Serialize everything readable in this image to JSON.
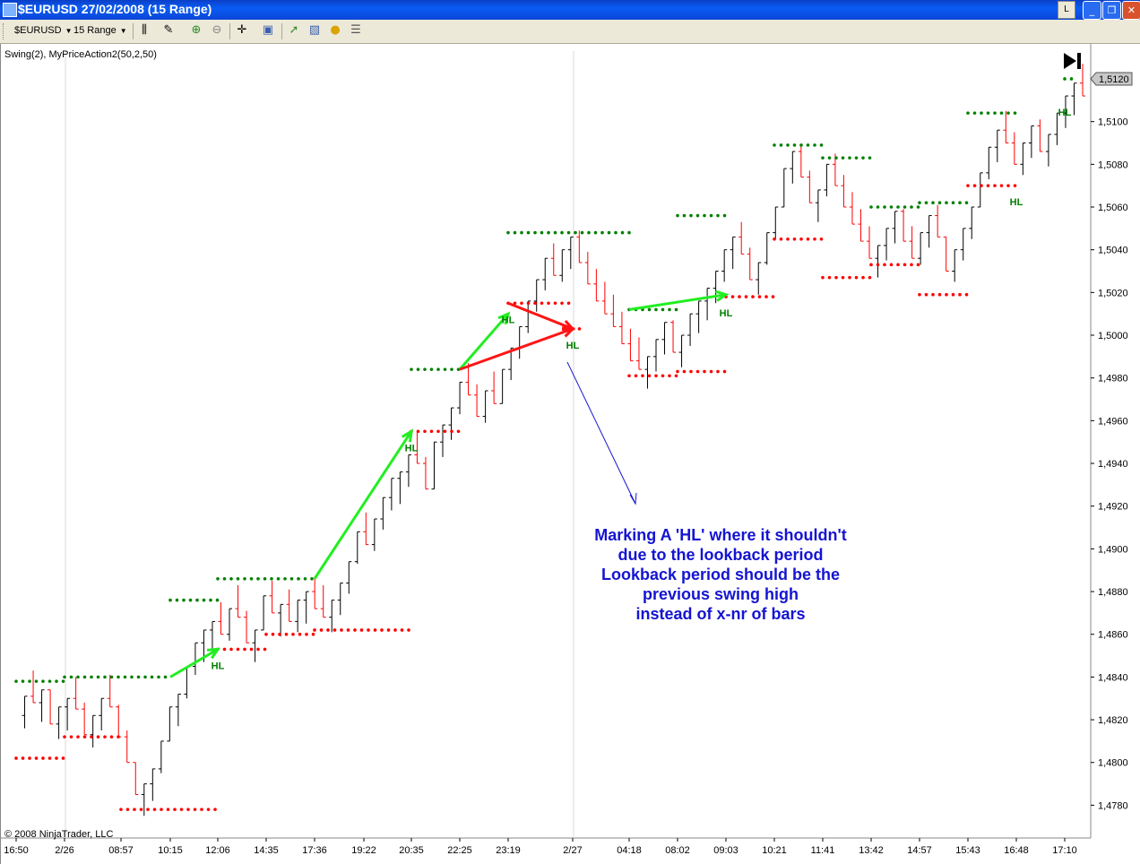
{
  "window": {
    "title": "$EURUSD  27/02/2008 (15 Range)",
    "link_label": "L",
    "minimize_icon": "minimize-icon",
    "restore_icon": "restore-icon",
    "close_icon": "close-icon"
  },
  "toolbar": {
    "instrument": "$EURUSD",
    "period": "15 Range",
    "icons": [
      "bar-type-icon",
      "drawing-tools-icon",
      "zoom-in-icon",
      "zoom-out-icon",
      "crosshair-icon",
      "data-box-icon",
      "indicators-icon",
      "strategies-icon",
      "chart-style-icon",
      "properties-icon"
    ]
  },
  "chart": {
    "indicator_label": "Swing(2), MyPriceAction2(50,2,50)",
    "copyright": "© 2008 NinjaTrader, LLC",
    "last_price": "1,5120",
    "go_to_end_icon": "go-to-end-icon",
    "colors": {
      "up_bar": "#000000",
      "down_bar": "#ff0000",
      "swing_high": "#008000",
      "swing_low": "#ff0000",
      "green_arrow": "#22ee22",
      "red_arrow": "#ff1414",
      "blue_arrow": "#1414d2",
      "note_text": "#1414d2"
    },
    "annotation_lines": [
      "Marking A  'HL'  where it shouldn't",
      "due to the lookback period",
      "Lookback period should be the",
      "previous swing high",
      "instead of x-nr of bars"
    ]
  },
  "chart_data": {
    "type": "ohlc-range",
    "title": "$EURUSD  27/02/2008 (15 Range)",
    "y_ticks": [
      "1,4780",
      "1,4800",
      "1,4820",
      "1,4840",
      "1,4860",
      "1,4880",
      "1,4900",
      "1,4920",
      "1,4940",
      "1,4960",
      "1,4980",
      "1,5000",
      "1,5020",
      "1,5040",
      "1,5060",
      "1,5080",
      "1,5100"
    ],
    "ylim": [
      1.4768,
      1.5133
    ],
    "x_ticks": [
      "16:50",
      "2/26",
      "08:57",
      "10:15",
      "12:06",
      "14:35",
      "17:36",
      "19:22",
      "20:35",
      "22:25",
      "23:19",
      "2/27",
      "04:18",
      "08:02",
      "09:03",
      "10:21",
      "11:41",
      "13:42",
      "14:57",
      "15:43",
      "16:48",
      "17:10"
    ],
    "last_price": 1.512,
    "swing_high_levels": [
      {
        "from": "16:50",
        "to": "2/26",
        "value": 1.4838
      },
      {
        "from": "2/26",
        "to": "10:15",
        "value": 1.484
      },
      {
        "from": "10:15",
        "to": "12:06",
        "value": 1.4876
      },
      {
        "from": "12:06",
        "to": "17:36",
        "value": 1.4886
      },
      {
        "from": "20:35",
        "to": "22:25",
        "value": 1.4984
      },
      {
        "from": "23:19",
        "to": "04:18",
        "value": 1.5048
      },
      {
        "from": "04:18",
        "to": "08:02",
        "value": 1.5012
      },
      {
        "from": "08:02",
        "to": "09:03",
        "value": 1.5056
      },
      {
        "from": "10:21",
        "to": "11:41",
        "value": 1.5089
      },
      {
        "from": "11:41",
        "to": "13:42",
        "value": 1.5083
      },
      {
        "from": "13:42",
        "to": "14:57",
        "value": 1.506
      },
      {
        "from": "14:57",
        "to": "15:43",
        "value": 1.5062
      },
      {
        "from": "15:43",
        "to": "16:48",
        "value": 1.5104
      },
      {
        "from": "17:10",
        "to": "17:10",
        "value": 1.512
      }
    ],
    "swing_low_levels": [
      {
        "from": "16:50",
        "to": "2/26",
        "value": 1.4802
      },
      {
        "from": "2/26",
        "to": "08:57",
        "value": 1.4812
      },
      {
        "from": "08:57",
        "to": "12:06",
        "value": 1.4778
      },
      {
        "from": "12:06",
        "to": "14:35",
        "value": 1.4853
      },
      {
        "from": "14:35",
        "to": "17:36",
        "value": 1.486
      },
      {
        "from": "17:36",
        "to": "20:35",
        "value": 1.4862
      },
      {
        "from": "20:35",
        "to": "22:25",
        "value": 1.4955
      },
      {
        "from": "23:19",
        "to": "2/27",
        "value": 1.5015
      },
      {
        "from": "2/27",
        "to": "2/27",
        "value": 1.5003
      },
      {
        "from": "04:18",
        "to": "08:02",
        "value": 1.4981
      },
      {
        "from": "08:02",
        "to": "09:03",
        "value": 1.4983
      },
      {
        "from": "09:03",
        "to": "10:21",
        "value": 1.5018
      },
      {
        "from": "10:21",
        "to": "11:41",
        "value": 1.5045
      },
      {
        "from": "11:41",
        "to": "13:42",
        "value": 1.5027
      },
      {
        "from": "13:42",
        "to": "14:57",
        "value": 1.5033
      },
      {
        "from": "14:57",
        "to": "15:43",
        "value": 1.5019
      },
      {
        "from": "15:43",
        "to": "16:48",
        "value": 1.507
      }
    ],
    "hl_labels": [
      {
        "text": "HL",
        "x": "12:06",
        "value": 1.4853
      },
      {
        "text": "HL",
        "x": "20:35",
        "value": 1.4955
      },
      {
        "text": "HL",
        "x": "23:19",
        "value": 1.5015
      },
      {
        "text": "HL",
        "x": "2/27",
        "value": 1.5003
      },
      {
        "text": "HL",
        "x": "09:03",
        "value": 1.5018
      },
      {
        "text": "HL",
        "x": "16:48",
        "value": 1.507
      },
      {
        "text": "HL",
        "x": "17:10",
        "value": 1.5112
      }
    ],
    "green_arrows": [
      {
        "from": [
          "10:15",
          1.484
        ],
        "to": [
          "12:06",
          1.4853
        ]
      },
      {
        "from": [
          "17:36",
          1.4886
        ],
        "to": [
          "20:35",
          1.4955
        ]
      },
      {
        "from": [
          "22:25",
          1.4984
        ],
        "to": [
          "23:19",
          1.501
        ]
      },
      {
        "from": [
          "04:18",
          1.5012
        ],
        "to": [
          "09:03",
          1.5019
        ]
      }
    ],
    "red_arrows": [
      {
        "from": [
          "22:25",
          1.4984
        ],
        "to": [
          "2/27",
          1.5003
        ]
      },
      {
        "from": [
          "23:19",
          1.5015
        ],
        "to": [
          "2/27",
          1.5003
        ]
      }
    ],
    "price_path": [
      1.4822,
      1.4831,
      1.4828,
      1.4834,
      1.4818,
      1.4826,
      1.483,
      1.4825,
      1.4813,
      1.4822,
      1.483,
      1.4826,
      1.4812,
      1.48,
      1.4785,
      1.479,
      1.4797,
      1.481,
      1.4826,
      1.4832,
      1.4845,
      1.4856,
      1.4862,
      1.4866,
      1.486,
      1.4872,
      1.4868,
      1.4856,
      1.4862,
      1.4878,
      1.487,
      1.4874,
      1.4866,
      1.4876,
      1.488,
      1.4872,
      1.4868,
      1.4876,
      1.4884,
      1.4894,
      1.4908,
      1.4902,
      1.4914,
      1.4924,
      1.4933,
      1.4936,
      1.4944,
      1.494,
      1.4928,
      1.495,
      1.4958,
      1.4966,
      1.4978,
      1.4972,
      1.4962,
      1.4974,
      1.4968,
      1.4984,
      1.4994,
      1.5004,
      1.5016,
      1.5026,
      1.5036,
      1.5028,
      1.504,
      1.5046,
      1.5034,
      1.5024,
      1.5016,
      1.501,
      1.5004,
      1.4996,
      1.4988,
      1.4984,
      1.499,
      1.4998,
      1.5006,
      1.4992,
      1.5,
      1.501,
      1.5016,
      1.5022,
      1.503,
      1.504,
      1.5046,
      1.5038,
      1.5026,
      1.5034,
      1.5048,
      1.506,
      1.5078,
      1.5086,
      1.5074,
      1.5062,
      1.5068,
      1.508,
      1.507,
      1.506,
      1.5052,
      1.5044,
      1.5036,
      1.5042,
      1.505,
      1.5058,
      1.5044,
      1.5036,
      1.5048,
      1.5056,
      1.5046,
      1.503,
      1.504,
      1.505,
      1.506,
      1.5076,
      1.5088,
      1.5096,
      1.509,
      1.508,
      1.509,
      1.5098,
      1.5086,
      1.5094,
      1.5104,
      1.5112,
      1.5118,
      1.5112
    ]
  }
}
